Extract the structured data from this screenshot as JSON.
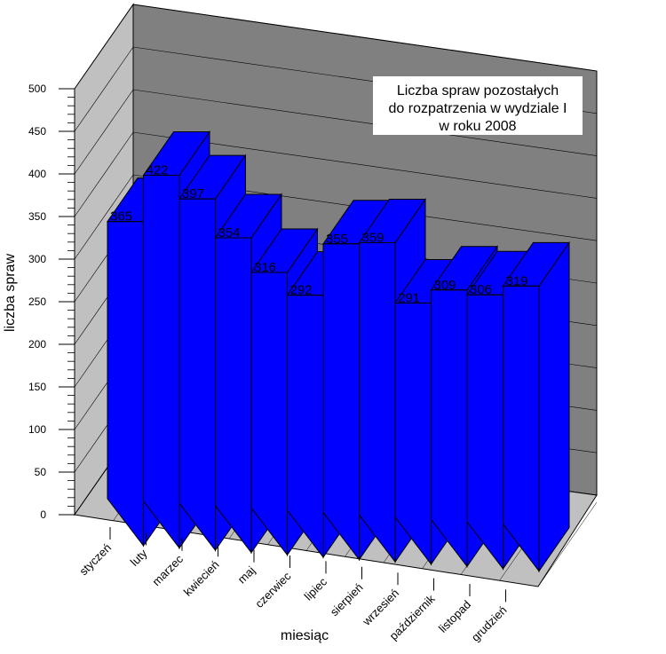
{
  "chart_data": {
    "type": "bar",
    "title_lines": [
      "Liczba spraw pozostałych",
      "do rozpatrzenia w  wydziale I",
      "w roku 2008"
    ],
    "xlabel": "miesiąc",
    "ylabel": "liczba spraw",
    "categories": [
      "styczeń",
      "luty",
      "marzec",
      "kwiecień",
      "maj",
      "czerwiec",
      "lipiec",
      "sierpień",
      "wrzesień",
      "październik",
      "listopad",
      "grudzień"
    ],
    "values": [
      365,
      422,
      397,
      354,
      316,
      292,
      355,
      359,
      291,
      309,
      306,
      319
    ],
    "ylim": [
      0,
      500
    ],
    "yticks": [
      0,
      50,
      100,
      150,
      200,
      250,
      300,
      350,
      400,
      450,
      500
    ],
    "grid": true,
    "three_d": true,
    "colors": {
      "bar_front": "#0000ff",
      "bar_side": "#0000ff",
      "wall_back": "#808080",
      "wall_left": "#c0c0c0",
      "floor": "#c0c0c0",
      "grid": "#000000"
    }
  }
}
